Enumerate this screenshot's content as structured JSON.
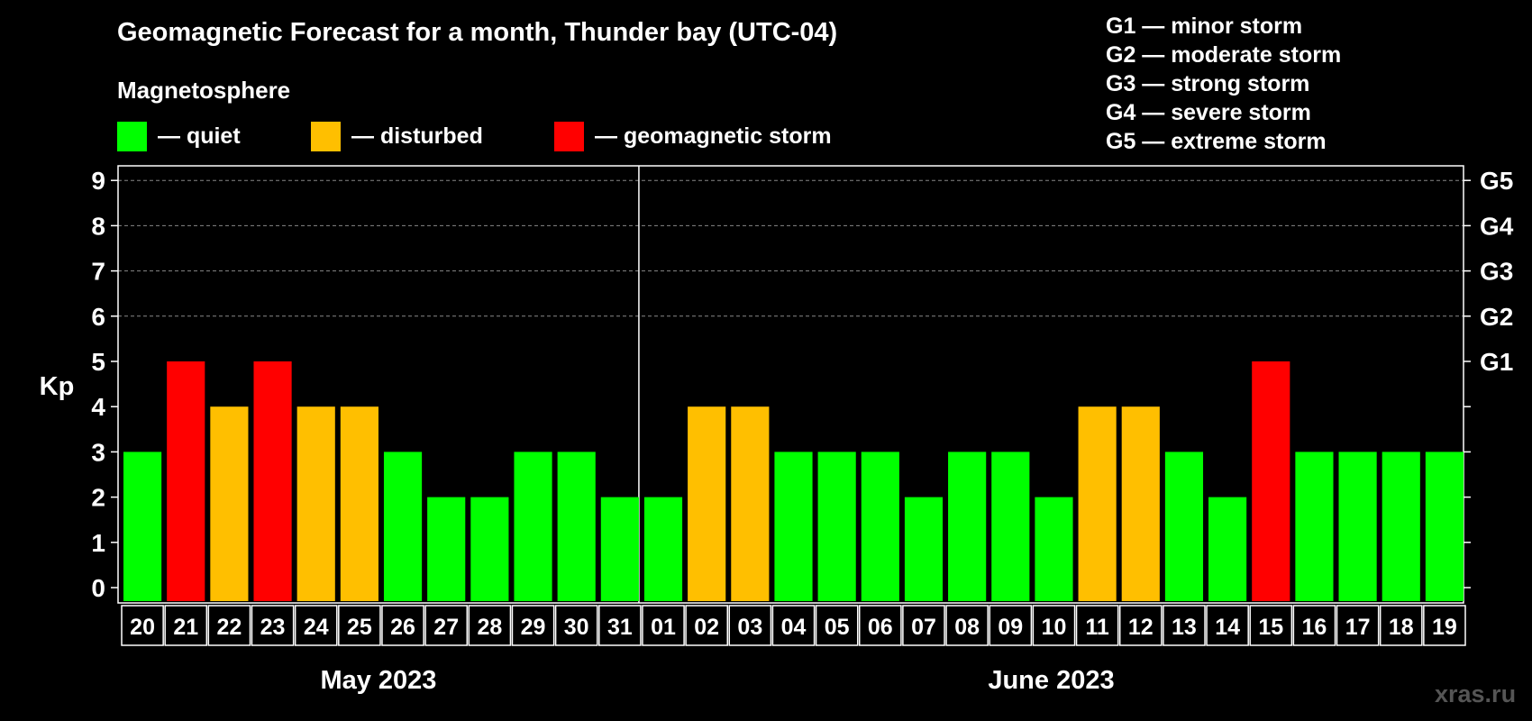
{
  "header": {
    "title": "Geomagnetic Forecast for a month, Thunder bay (UTC-04)",
    "subtitle": "Magnetosphere"
  },
  "legend": {
    "quiet": "— quiet",
    "disturbed": "— disturbed",
    "storm": "— geomagnetic storm"
  },
  "g_legend": [
    "G1 — minor storm",
    "G2 — moderate storm",
    "G3 — strong storm",
    "G4 — severe storm",
    "G5 — extreme storm"
  ],
  "watermark": "xras.ru",
  "colors": {
    "quiet": "#00ff00",
    "disturbed": "#ffbf00",
    "storm": "#ff0000",
    "background": "#000000",
    "foreground": "#ffffff"
  },
  "chart_data": {
    "type": "bar",
    "title": "Geomagnetic Forecast for a month, Thunder bay (UTC-04)",
    "ylabel": "Kp",
    "ylim": [
      0,
      9
    ],
    "yticks": [
      "0",
      "1",
      "2",
      "3",
      "4",
      "5",
      "6",
      "7",
      "8",
      "9"
    ],
    "right_ticks": [
      {
        "kp": 5,
        "label": "G1"
      },
      {
        "kp": 6,
        "label": "G2"
      },
      {
        "kp": 7,
        "label": "G3"
      },
      {
        "kp": 8,
        "label": "G4"
      },
      {
        "kp": 9,
        "label": "G5"
      }
    ],
    "categories": [
      "20",
      "21",
      "22",
      "23",
      "24",
      "25",
      "26",
      "27",
      "28",
      "29",
      "30",
      "31",
      "01",
      "02",
      "03",
      "04",
      "05",
      "06",
      "07",
      "08",
      "09",
      "10",
      "11",
      "12",
      "13",
      "14",
      "15",
      "16",
      "17",
      "18",
      "19"
    ],
    "values": [
      3,
      5,
      4,
      5,
      4,
      4,
      3,
      2,
      2,
      3,
      3,
      2,
      2,
      4,
      4,
      3,
      3,
      3,
      2,
      3,
      3,
      2,
      4,
      4,
      3,
      2,
      5,
      3,
      3,
      3,
      3
    ],
    "months": [
      {
        "label": "May 2023",
        "days": 12
      },
      {
        "label": "June 2023",
        "days": 19
      }
    ]
  }
}
